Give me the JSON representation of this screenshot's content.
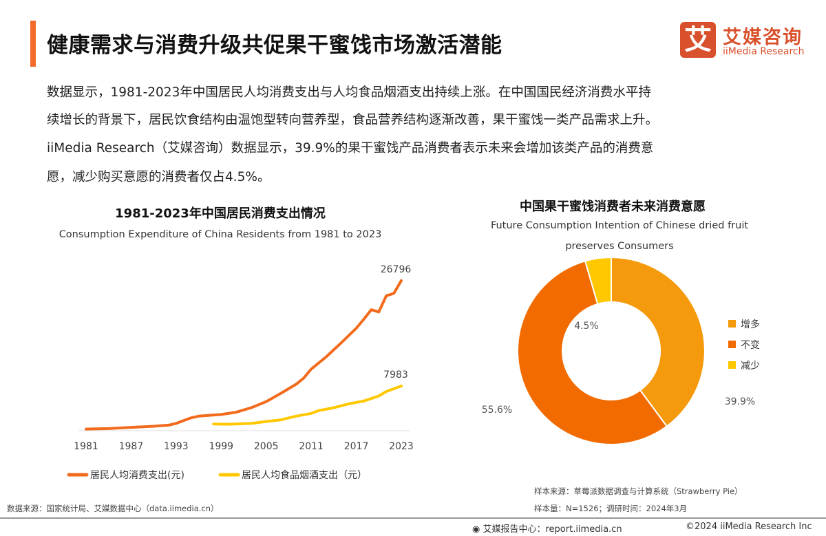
{
  "header": {
    "title": "健康需求与消费升级共促果干蜜饯市场激活潜能",
    "accent_color": "#F26B2A",
    "logo": {
      "mark": "艾",
      "cn": "艾媒咨询",
      "en": "iiMedia Research"
    }
  },
  "paragraph": [
    "数据显示，1981-2023年中国居民人均消费支出与人均食品烟酒支出持续上涨。在中国国民经济消费水平持",
    "续增长的背景下，居民饮食结构由温饱型转向营养型，食品营养结构逐渐改善，果干蜜饯一类产品需求上升。",
    "iiMedia Research（艾媒咨询）数据显示，39.9%的果干蜜饯产品消费者表示未来会增加该类产品的消费意",
    "愿，减少购买意愿的消费者仅占4.5%。"
  ],
  "chart_data": [
    {
      "type": "line",
      "title": "1981-2023年中国居民消费支出情况",
      "subtitle": "Consumption Expenditure of China Residents from 1981 to 2023",
      "x_tick_labels": [
        "1981",
        "1987",
        "1993",
        "1999",
        "2005",
        "2011",
        "2017",
        "2023"
      ],
      "xlim": [
        1981,
        2023
      ],
      "ylim": [
        0,
        28000
      ],
      "grid": false,
      "legend_position": "bottom",
      "series": [
        {
          "name": "居民人均消费支出(元)",
          "color": "#F26B1D",
          "end_label": "26796",
          "points": [
            [
              1981,
              300
            ],
            [
              1984,
              380
            ],
            [
              1987,
              600
            ],
            [
              1990,
              800
            ],
            [
              1992,
              1000
            ],
            [
              1993,
              1300
            ],
            [
              1994,
              1800
            ],
            [
              1995,
              2300
            ],
            [
              1996,
              2600
            ],
            [
              1997,
              2700
            ],
            [
              1999,
              2900
            ],
            [
              2001,
              3300
            ],
            [
              2003,
              4100
            ],
            [
              2005,
              5200
            ],
            [
              2007,
              6700
            ],
            [
              2009,
              8300
            ],
            [
              2010,
              9400
            ],
            [
              2011,
              11000
            ],
            [
              2013,
              13200
            ],
            [
              2015,
              15700
            ],
            [
              2017,
              18300
            ],
            [
              2018,
              19900
            ],
            [
              2019,
              21600
            ],
            [
              2020,
              21200
            ],
            [
              2021,
              24100
            ],
            [
              2022,
              24500
            ],
            [
              2023,
              26796
            ]
          ]
        },
        {
          "name": "居民人均食品烟酒支出（元）",
          "color": "#FFC800",
          "end_label": "7983",
          "points": [
            [
              1998,
              1200
            ],
            [
              2000,
              1150
            ],
            [
              2002,
              1250
            ],
            [
              2003,
              1300
            ],
            [
              2005,
              1650
            ],
            [
              2007,
              1950
            ],
            [
              2009,
              2600
            ],
            [
              2011,
              3100
            ],
            [
              2012,
              3600
            ],
            [
              2014,
              4100
            ],
            [
              2016,
              4800
            ],
            [
              2018,
              5300
            ],
            [
              2020,
              6200
            ],
            [
              2021,
              7000
            ],
            [
              2023,
              7983
            ]
          ]
        }
      ]
    },
    {
      "type": "pie",
      "donut": true,
      "title": "中国果干蜜饯消费者未来消费意愿",
      "subtitle_lines": [
        "Future Consumption Intention of Chinese dried fruit",
        "preserves Consumers"
      ],
      "legend_position": "right",
      "slices": [
        {
          "label": "增多",
          "value": 39.9,
          "text": "39.9%",
          "color": "#F59A0C"
        },
        {
          "label": "不变",
          "value": 55.6,
          "text": "55.6%",
          "color": "#F26B00"
        },
        {
          "label": "减少",
          "value": 4.5,
          "text": "4.5%",
          "color": "#FFC800"
        }
      ]
    }
  ],
  "notes": {
    "left_source": "数据来源：国家统计局、艾媒数据中心（data.iimedia.cn）",
    "right_source": "样本来源：草莓派数据调查与计算系统（Strawberry Pie）",
    "right_sample": "样本量：N=1526；调研时间：2024年3月"
  },
  "footer": {
    "report": "艾媒报告中心：report.iimedia.cn",
    "copyright": "©2024  iiMedia Research Inc"
  }
}
